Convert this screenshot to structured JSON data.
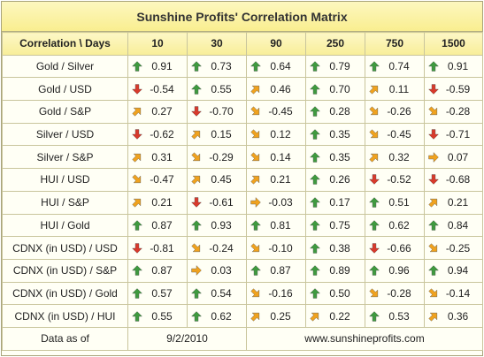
{
  "title": "Sunshine Profits' Correlation Matrix",
  "header": {
    "corner": "Correlation \\ Days",
    "periods": [
      "10",
      "30",
      "90",
      "250",
      "750",
      "1500"
    ]
  },
  "rows": [
    {
      "label": "Gold / Silver",
      "cells": [
        [
          "up",
          "0.91"
        ],
        [
          "up",
          "0.73"
        ],
        [
          "up",
          "0.64"
        ],
        [
          "up",
          "0.79"
        ],
        [
          "up",
          "0.74"
        ],
        [
          "up",
          "0.91"
        ]
      ]
    },
    {
      "label": "Gold / USD",
      "cells": [
        [
          "down",
          "-0.54"
        ],
        [
          "up",
          "0.55"
        ],
        [
          "up-right",
          "0.46"
        ],
        [
          "up",
          "0.70"
        ],
        [
          "up-right",
          "0.11"
        ],
        [
          "down",
          "-0.59"
        ]
      ]
    },
    {
      "label": "Gold / S&P",
      "cells": [
        [
          "up-right",
          "0.27"
        ],
        [
          "down",
          "-0.70"
        ],
        [
          "down-right",
          "-0.45"
        ],
        [
          "up",
          "0.28"
        ],
        [
          "down-right",
          "-0.26"
        ],
        [
          "down-right",
          "-0.28"
        ]
      ]
    },
    {
      "label": "Silver / USD",
      "cells": [
        [
          "down",
          "-0.62"
        ],
        [
          "up-right",
          "0.15"
        ],
        [
          "down-right",
          "0.12"
        ],
        [
          "up",
          "0.35"
        ],
        [
          "down-right",
          "-0.45"
        ],
        [
          "down",
          "-0.71"
        ]
      ]
    },
    {
      "label": "Silver / S&P",
      "cells": [
        [
          "up-right",
          "0.31"
        ],
        [
          "down-right",
          "-0.29"
        ],
        [
          "down-right",
          "0.14"
        ],
        [
          "up",
          "0.35"
        ],
        [
          "up-right",
          "0.32"
        ],
        [
          "right",
          "0.07"
        ]
      ]
    },
    {
      "label": "HUI / USD",
      "cells": [
        [
          "down-right",
          "-0.47"
        ],
        [
          "up-right",
          "0.45"
        ],
        [
          "up-right",
          "0.21"
        ],
        [
          "up",
          "0.26"
        ],
        [
          "down",
          "-0.52"
        ],
        [
          "down",
          "-0.68"
        ]
      ]
    },
    {
      "label": "HUI / S&P",
      "cells": [
        [
          "up-right",
          "0.21"
        ],
        [
          "down",
          "-0.61"
        ],
        [
          "right",
          "-0.03"
        ],
        [
          "up",
          "0.17"
        ],
        [
          "up",
          "0.51"
        ],
        [
          "up-right",
          "0.21"
        ]
      ]
    },
    {
      "label": "HUI / Gold",
      "cells": [
        [
          "up",
          "0.87"
        ],
        [
          "up",
          "0.93"
        ],
        [
          "up",
          "0.81"
        ],
        [
          "up",
          "0.75"
        ],
        [
          "up",
          "0.62"
        ],
        [
          "up",
          "0.84"
        ]
      ]
    },
    {
      "label": "CDNX (in USD) / USD",
      "cells": [
        [
          "down",
          "-0.81"
        ],
        [
          "down-right",
          "-0.24"
        ],
        [
          "down-right",
          "-0.10"
        ],
        [
          "up",
          "0.38"
        ],
        [
          "down",
          "-0.66"
        ],
        [
          "down-right",
          "-0.25"
        ]
      ]
    },
    {
      "label": "CDNX (in USD) / S&P",
      "cells": [
        [
          "up",
          "0.87"
        ],
        [
          "right",
          "0.03"
        ],
        [
          "up",
          "0.87"
        ],
        [
          "up",
          "0.89"
        ],
        [
          "up",
          "0.96"
        ],
        [
          "up",
          "0.94"
        ]
      ]
    },
    {
      "label": "CDNX (in USD) / Gold",
      "cells": [
        [
          "up",
          "0.57"
        ],
        [
          "up",
          "0.54"
        ],
        [
          "down-right",
          "-0.16"
        ],
        [
          "up",
          "0.50"
        ],
        [
          "down-right",
          "-0.28"
        ],
        [
          "down-right",
          "-0.14"
        ]
      ]
    },
    {
      "label": "CDNX (in USD) / HUI",
      "cells": [
        [
          "up",
          "0.55"
        ],
        [
          "up",
          "0.62"
        ],
        [
          "up-right",
          "0.25"
        ],
        [
          "up-right",
          "0.22"
        ],
        [
          "up",
          "0.53"
        ],
        [
          "up-right",
          "0.36"
        ]
      ]
    }
  ],
  "footer": {
    "label": "Data as of",
    "date": "9/2/2010",
    "website": "www.sunshineprofits.com"
  },
  "colors": {
    "up": "#3f9a3f",
    "down": "#d83a2c",
    "neutral": "#f0a21e"
  }
}
